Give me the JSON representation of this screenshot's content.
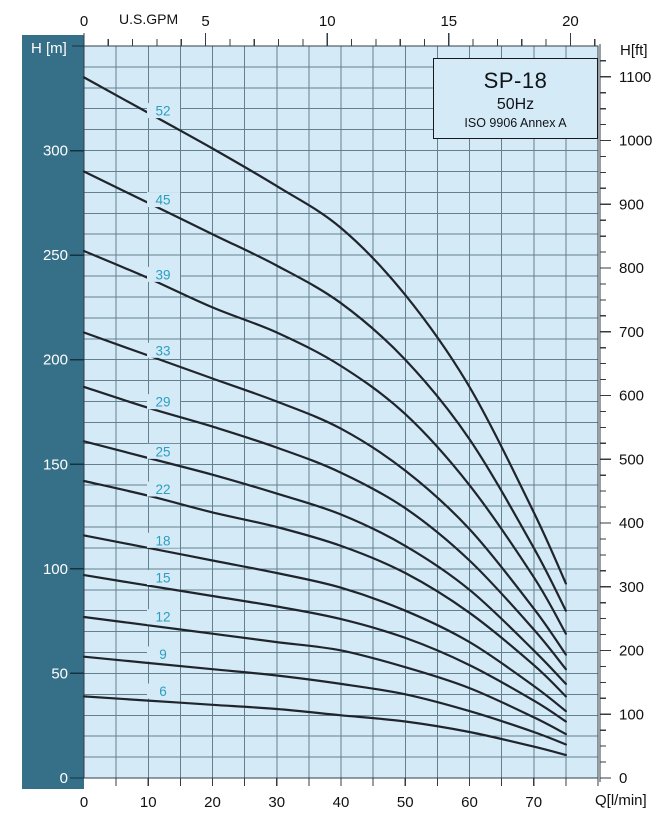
{
  "title_box": {
    "model": "SP-18",
    "frequency": "50Hz",
    "standard": "ISO 9906 Annex A"
  },
  "corner_labels": {
    "left_axis": "H [m]",
    "right_axis": "H[ft]",
    "top_axis": "U.S.GPM",
    "bottom_axis": "Q[l/min]"
  },
  "colors": {
    "page_bg": "#ffffff",
    "plot_bg": "#d4eaf6",
    "sidebar": "#356f88",
    "grid": "#64808f",
    "axis": "#333c44",
    "curve": "#20252d",
    "curve_label": "#2b9fc3",
    "left_tick": "#16323f",
    "left_text": "#ffffff",
    "tick_text": "#111111"
  },
  "chart_data": {
    "type": "line",
    "title": "SP-18",
    "subtitle": "50Hz",
    "note": "ISO 9906 Annex A",
    "xlabel": "Q[l/min]",
    "ylabel": "H [m]",
    "secondary_xlabel": "U.S.GPM",
    "secondary_ylabel": "H[ft]",
    "xlim": [
      0,
      80
    ],
    "ylim": [
      0,
      350
    ],
    "grid": {
      "x_step_lmin": 5,
      "y_step_m": 10
    },
    "axis_ticks": {
      "bottom_lmin": [
        0,
        10,
        20,
        30,
        40,
        50,
        60,
        70
      ],
      "top_usgpm": [
        0,
        5,
        10,
        15,
        20
      ],
      "top_usgpm_minor_step": 1,
      "left_m": [
        0,
        50,
        100,
        150,
        200,
        250,
        300
      ],
      "right_ft": [
        0,
        100,
        200,
        300,
        400,
        500,
        600,
        700,
        800,
        900,
        1000,
        1100
      ],
      "right_ft_minor_step": 25
    },
    "x": [
      0,
      10,
      20,
      30,
      40,
      50,
      60,
      70,
      75
    ],
    "series": [
      {
        "name": "52",
        "stages": 52,
        "values": [
          335,
          318,
          301,
          283,
          263,
          231,
          187,
          127,
          93
        ]
      },
      {
        "name": "45",
        "stages": 45,
        "values": [
          290,
          275,
          260,
          245,
          227,
          200,
          162,
          110,
          80
        ]
      },
      {
        "name": "39",
        "stages": 39,
        "values": [
          252,
          239,
          225,
          213,
          197,
          174,
          140,
          96,
          69
        ]
      },
      {
        "name": "33",
        "stages": 33,
        "values": [
          213,
          202,
          191,
          180,
          167,
          147,
          119,
          81,
          59
        ]
      },
      {
        "name": "29",
        "stages": 29,
        "values": [
          187,
          177,
          168,
          158,
          146,
          129,
          104,
          71,
          52
        ]
      },
      {
        "name": "25",
        "stages": 25,
        "values": [
          161,
          153,
          145,
          136,
          126,
          111,
          90,
          61,
          45
        ]
      },
      {
        "name": "22",
        "stages": 22,
        "values": [
          142,
          135,
          127,
          120,
          111,
          98,
          79,
          54,
          39
        ]
      },
      {
        "name": "18",
        "stages": 18,
        "values": [
          116,
          110,
          104,
          98,
          91,
          80,
          65,
          44,
          32
        ]
      },
      {
        "name": "15",
        "stages": 15,
        "values": [
          97,
          92,
          87,
          82,
          76,
          67,
          54,
          37,
          27
        ]
      },
      {
        "name": "12",
        "stages": 12,
        "values": [
          77,
          73,
          69,
          65,
          61,
          53,
          43,
          29,
          21
        ]
      },
      {
        "name": "9",
        "stages": 9,
        "values": [
          58,
          55,
          52,
          49,
          45,
          40,
          32,
          22,
          16
        ]
      },
      {
        "name": "6",
        "stages": 6,
        "values": [
          39,
          37,
          35,
          33,
          30,
          27,
          22,
          15,
          11
        ]
      }
    ]
  }
}
